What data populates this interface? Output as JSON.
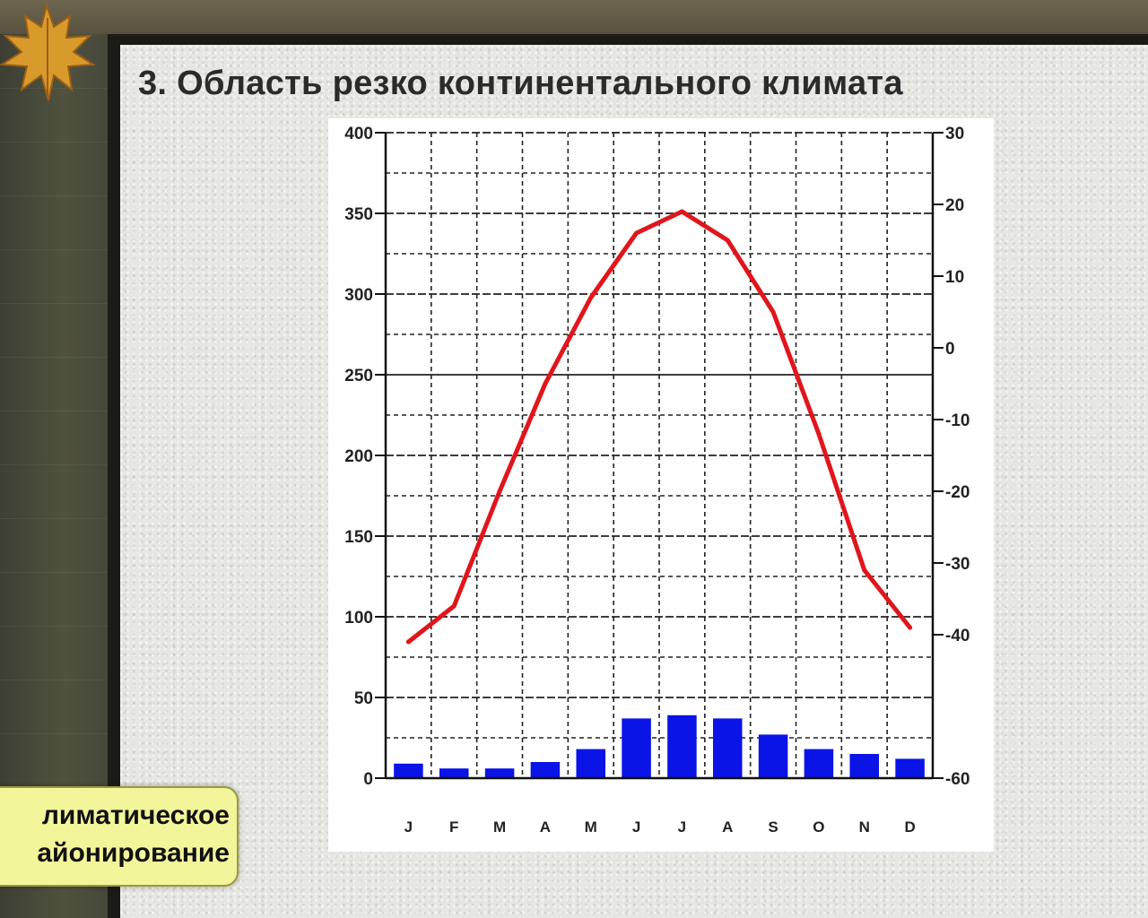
{
  "slide": {
    "title": "3. Область резко континентального климата",
    "badge_line1": "лиматическое",
    "badge_line2": "айонирование"
  },
  "chart_data": {
    "type": "bar+line",
    "title": "3. Область резко континентального климата",
    "categories": [
      "J",
      "F",
      "M",
      "A",
      "M",
      "J",
      "J",
      "A",
      "S",
      "O",
      "N",
      "D"
    ],
    "left_axis": {
      "ylim": [
        0,
        400
      ],
      "ticks": [
        0,
        50,
        100,
        150,
        200,
        250,
        300,
        350,
        400
      ]
    },
    "right_axis": {
      "ylim": [
        -60,
        30
      ],
      "ticks": [
        -60,
        -40,
        -30,
        -20,
        -10,
        0,
        10,
        20,
        30
      ]
    },
    "series": [
      {
        "type": "bar",
        "axis": "left",
        "color": "#0a14e6",
        "values": [
          9,
          6,
          6,
          10,
          18,
          37,
          39,
          37,
          27,
          18,
          15,
          12
        ]
      },
      {
        "type": "line",
        "axis": "right",
        "color": "#e0161c",
        "values": [
          -41,
          -36,
          -20,
          -5,
          7,
          16,
          19,
          15,
          5,
          -12,
          -31,
          -39
        ]
      }
    ],
    "grid": true
  },
  "colors": {
    "bar": "#0a14e6",
    "line": "#e0161c",
    "badge": "#f3f59a"
  },
  "icons": {
    "leaf": "maple-leaf-icon"
  }
}
